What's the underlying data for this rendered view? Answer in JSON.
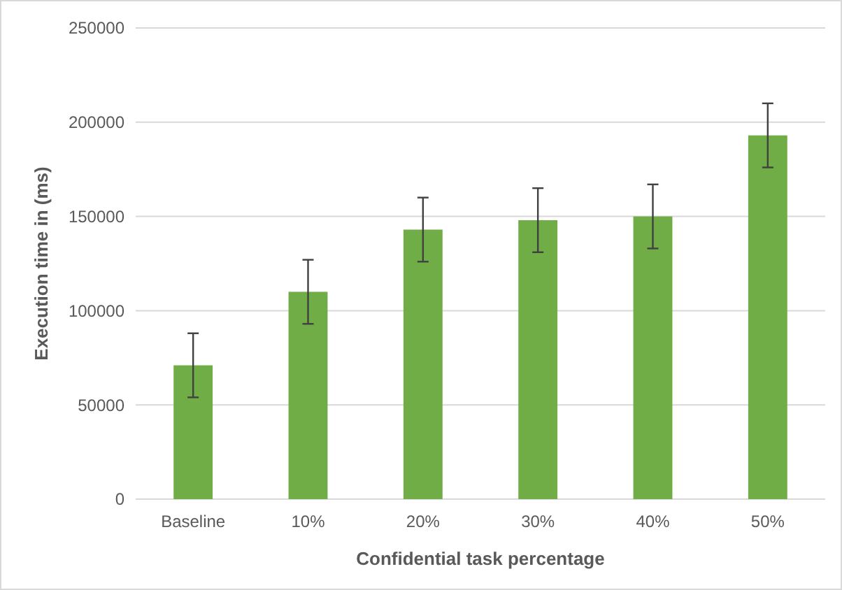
{
  "chart_data": {
    "type": "bar",
    "xlabel": "Confidential task percentage",
    "ylabel": "Execution time in (ms)",
    "categories": [
      "Baseline",
      "10%",
      "20%",
      "30%",
      "40%",
      "50%"
    ],
    "values": [
      71000,
      110000,
      143000,
      148000,
      150000,
      193000
    ],
    "errors": [
      17000,
      17000,
      17000,
      17000,
      17000,
      17000
    ],
    "color": "#70ad47",
    "ylim": [
      0,
      250000
    ],
    "yticks": [
      0,
      50000,
      100000,
      150000,
      200000,
      250000
    ],
    "grid": "y"
  }
}
